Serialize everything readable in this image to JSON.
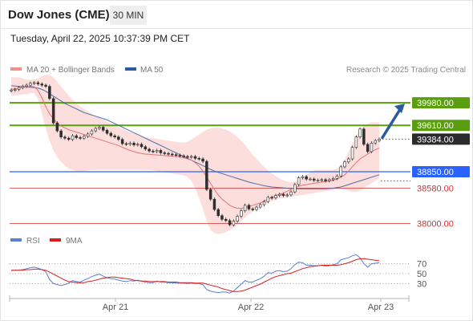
{
  "header": {
    "title": "Dow Jones (CME)",
    "timeframe": "30 MIN"
  },
  "timestamp": "Tuesday, April 22, 2025 10:37:39 PM CET",
  "legend": {
    "ma20_bb": "MA 20 + Bollinger Bands",
    "ma50": "MA 50",
    "copyright": "Research © 2025 Trading Central",
    "rsi": "RSI",
    "rsi_ma": "9MA"
  },
  "colors": {
    "resistance": "#5a9e0f",
    "support": "#d32f2f",
    "pivot": "#2962ff",
    "candle": "#2f2f2f",
    "ma20": "#e57373",
    "ma50": "#2c5aa0",
    "bollinger": "#fbd2cf",
    "arrow": "#2c5aa0"
  },
  "chart_data": {
    "type": "candlestick",
    "symbol": "Dow Jones (CME)",
    "timeframe": "30 MIN",
    "x_ticks": [
      "Apr 21",
      "Apr 22",
      "Apr 23"
    ],
    "price_ylim": [
      37850,
      40350
    ],
    "current_price": 39384.0,
    "levels": [
      {
        "value": 39980.0,
        "label": "39980.00",
        "kind": "resistance"
      },
      {
        "value": 39610.0,
        "label": "39610.00",
        "kind": "resistance"
      },
      {
        "value": 38850.0,
        "label": "38850.00",
        "kind": "pivot"
      },
      {
        "value": 38580.0,
        "label": "38580.00",
        "kind": "support"
      },
      {
        "value": 38000.0,
        "label": "38000.00",
        "kind": "support"
      }
    ],
    "close": [
      40190,
      40200,
      40230,
      40250,
      40270,
      40300,
      40310,
      40290,
      40270,
      40250,
      40050,
      39650,
      39520,
      39420,
      39400,
      39380,
      39440,
      39410,
      39400,
      39430,
      39470,
      39520,
      39560,
      39580,
      39530,
      39480,
      39440,
      39420,
      39380,
      39310,
      39300,
      39320,
      39290,
      39300,
      39260,
      39220,
      39190,
      39180,
      39200,
      39160,
      39150,
      39140,
      39130,
      39120,
      39110,
      39100,
      39090,
      39100,
      39070,
      39060,
      39020,
      38560,
      38400,
      38230,
      38130,
      38070,
      38050,
      37980,
      38040,
      38120,
      38210,
      38300,
      38240,
      38230,
      38270,
      38310,
      38360,
      38430,
      38420,
      38460,
      38480,
      38460,
      38470,
      38520,
      38640,
      38750,
      38770,
      38730,
      38730,
      38710,
      38710,
      38720,
      38700,
      38720,
      38740,
      38780,
      38930,
      39010,
      39060,
      39250,
      39420,
      39550,
      39300,
      39180,
      39320,
      39360,
      39384
    ],
    "ma20": [
      40200,
      40210,
      40220,
      40230,
      40240,
      40250,
      40245,
      40180,
      40060,
      39920,
      39800,
      39720,
      39650,
      39600,
      39570,
      39540,
      39520,
      39500,
      39480,
      39460,
      39440,
      39420,
      39400,
      39380,
      39360,
      39340,
      39320,
      39300,
      39280,
      39250,
      39225,
      39200,
      39180,
      39160,
      39150,
      39140,
      39135,
      39130,
      39125,
      39120,
      39115,
      39110,
      39105,
      39100,
      39090,
      39080,
      39060,
      39040,
      39000,
      38940,
      38860,
      38760,
      38660,
      38560,
      38470,
      38400,
      38350,
      38300,
      38270,
      38250,
      38250,
      38260,
      38280,
      38300,
      38320,
      38340,
      38370,
      38400,
      38430,
      38460,
      38480,
      38500,
      38530,
      38560,
      38590,
      38610,
      38630,
      38640,
      38650,
      38660,
      38670,
      38680,
      38690,
      38700,
      38710,
      38730,
      38760,
      38800,
      38860,
      38930,
      39000,
      39060,
      39100,
      39140,
      39180,
      39210,
      39240
    ],
    "ma50": [
      40260,
      40255,
      40250,
      40245,
      40240,
      40235,
      40230,
      40220,
      40200,
      40170,
      40130,
      40090,
      40050,
      40010,
      39970,
      39940,
      39910,
      39880,
      39850,
      39820,
      39800,
      39780,
      39760,
      39740,
      39720,
      39700,
      39670,
      39640,
      39610,
      39580,
      39550,
      39520,
      39490,
      39460,
      39430,
      39400,
      39370,
      39340,
      39310,
      39280,
      39250,
      39220,
      39190,
      39160,
      39130,
      39100,
      39070,
      39040,
      39010,
      38980,
      38950,
      38920,
      38890,
      38860,
      38840,
      38820,
      38800,
      38780,
      38760,
      38740,
      38720,
      38700,
      38680,
      38665,
      38650,
      38635,
      38620,
      38610,
      38600,
      38595,
      38590,
      38585,
      38580,
      38575,
      38570,
      38570,
      38570,
      38570,
      38570,
      38570,
      38570,
      38570,
      38570,
      38575,
      38580,
      38590,
      38600,
      38620,
      38640,
      38660,
      38680,
      38700,
      38720,
      38740,
      38760,
      38780,
      38800
    ],
    "bb_upper": [
      40400,
      40400,
      40400,
      40380,
      40360,
      40360,
      40360,
      40380,
      40420,
      40440,
      40440,
      40400,
      40330,
      40250,
      40170,
      40100,
      40030,
      39970,
      39920,
      39880,
      39840,
      39800,
      39760,
      39730,
      39700,
      39670,
      39640,
      39610,
      39580,
      39550,
      39520,
      39500,
      39480,
      39460,
      39440,
      39420,
      39410,
      39400,
      39390,
      39380,
      39370,
      39360,
      39350,
      39340,
      39330,
      39330,
      39340,
      39380,
      39420,
      39460,
      39500,
      39540,
      39560,
      39570,
      39570,
      39560,
      39540,
      39510,
      39470,
      39420,
      39360,
      39290,
      39210,
      39130,
      39060,
      38990,
      38930,
      38870,
      38820,
      38780,
      38740,
      38710,
      38690,
      38680,
      38690,
      38720,
      38760,
      38800,
      38840,
      38870,
      38880,
      38880,
      38880,
      38880,
      38880,
      38900,
      38950,
      39050,
      39180,
      39310,
      39440,
      39540,
      39600,
      39640,
      39660,
      39660,
      39660
    ],
    "bb_lower": [
      40100,
      40100,
      40110,
      40120,
      40120,
      40140,
      40140,
      40040,
      39800,
      39560,
      39360,
      39200,
      39090,
      39010,
      38950,
      38900,
      38880,
      38860,
      38860,
      38860,
      38870,
      38880,
      38880,
      38880,
      38880,
      38880,
      38880,
      38880,
      38880,
      38880,
      38880,
      38880,
      38880,
      38880,
      38880,
      38880,
      38880,
      38870,
      38860,
      38850,
      38840,
      38830,
      38820,
      38810,
      38800,
      38790,
      38760,
      38700,
      38580,
      38420,
      38240,
      38040,
      37900,
      37840,
      37830,
      37840,
      37860,
      37890,
      37930,
      37980,
      38040,
      38100,
      38150,
      38200,
      38240,
      38280,
      38320,
      38350,
      38370,
      38390,
      38410,
      38420,
      38430,
      38440,
      38450,
      38460,
      38470,
      38480,
      38490,
      38500,
      38510,
      38520,
      38530,
      38540,
      38550,
      38560,
      38570,
      38560,
      38540,
      38520,
      38520,
      38540,
      38580,
      38620,
      38660,
      38700,
      38740
    ],
    "rsi": {
      "ylim": [
        0,
        100
      ],
      "levels": [
        70,
        50,
        30
      ],
      "rsi": [
        56,
        57,
        57,
        58,
        60,
        62,
        63,
        61,
        58,
        54,
        38,
        30,
        28,
        26,
        28,
        31,
        36,
        34,
        33,
        37,
        40,
        44,
        47,
        49,
        45,
        42,
        40,
        39,
        37,
        35,
        34,
        36,
        35,
        37,
        35,
        33,
        32,
        32,
        35,
        33,
        33,
        32,
        32,
        31,
        31,
        31,
        30,
        31,
        30,
        30,
        28,
        18,
        15,
        13,
        12,
        13,
        13,
        11,
        15,
        22,
        29,
        36,
        33,
        33,
        37,
        40,
        45,
        52,
        51,
        55,
        56,
        54,
        55,
        60,
        68,
        73,
        72,
        67,
        67,
        66,
        66,
        67,
        65,
        66,
        68,
        70,
        78,
        80,
        82,
        86,
        88,
        82,
        70,
        63,
        70,
        71,
        72
      ],
      "ma": [
        57,
        57,
        57,
        57,
        58,
        58,
        59,
        59,
        58,
        57,
        53,
        49,
        45,
        41,
        37,
        34,
        33,
        32,
        32,
        32,
        34,
        35,
        37,
        39,
        41,
        42,
        43,
        43,
        42,
        41,
        40,
        39,
        37,
        36,
        35,
        35,
        34,
        34,
        34,
        34,
        34,
        33,
        33,
        33,
        32,
        32,
        32,
        32,
        31,
        31,
        31,
        29,
        27,
        25,
        23,
        20,
        18,
        16,
        14,
        14,
        15,
        17,
        20,
        23,
        26,
        29,
        33,
        37,
        41,
        44,
        46,
        48,
        50,
        51,
        54,
        57,
        60,
        62,
        64,
        65,
        66,
        67,
        67,
        67,
        67,
        67,
        68,
        70,
        72,
        75,
        78,
        80,
        80,
        79,
        78,
        77,
        76
      ]
    }
  }
}
